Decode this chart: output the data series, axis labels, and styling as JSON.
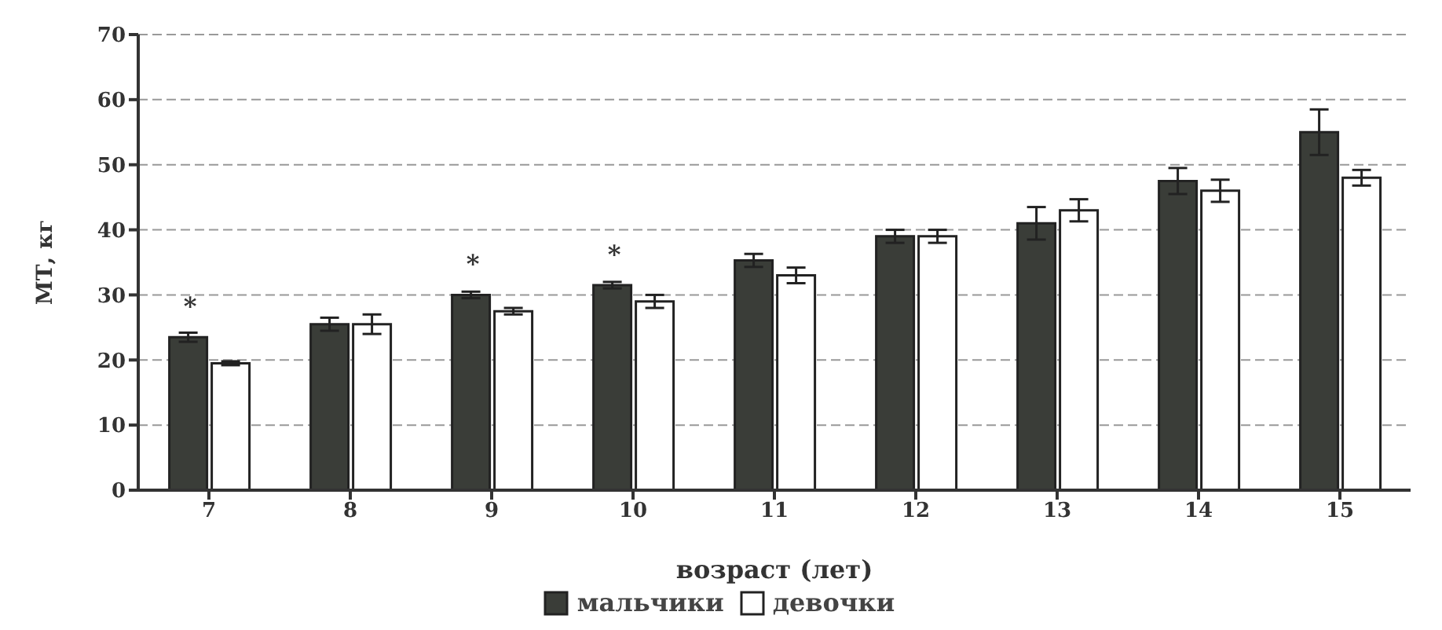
{
  "chart_data": {
    "type": "bar",
    "xlabel": "возраст (лет)",
    "ylabel": "МТ, кг",
    "categories": [
      "7",
      "8",
      "9",
      "10",
      "11",
      "12",
      "13",
      "14",
      "15"
    ],
    "series": [
      {
        "name": "мальчики",
        "color": "#3a3d38",
        "values": [
          23.5,
          25.5,
          30,
          31.5,
          35.3,
          39,
          41,
          47.5,
          55
        ],
        "errors": [
          0.7,
          1,
          0.5,
          0.5,
          1,
          1,
          2.5,
          2,
          3.5
        ]
      },
      {
        "name": "девочки",
        "color": "#ffffff",
        "values": [
          19.5,
          25.5,
          27.5,
          29,
          33,
          39,
          43,
          46,
          48
        ],
        "errors": [
          0.3,
          1.5,
          0.5,
          1,
          1.2,
          1,
          1.7,
          1.7,
          1.2
        ]
      }
    ],
    "ylim": [
      0,
      70
    ],
    "yticks": [
      0,
      10,
      20,
      30,
      40,
      50,
      60,
      70
    ],
    "grid": "y",
    "legend": "bottom",
    "annotations": [
      {
        "text": "*",
        "x": "7",
        "y": 23.5
      },
      {
        "text": "*",
        "x": "9",
        "y": 30
      },
      {
        "text": "*",
        "x": "10",
        "y": 31.5
      }
    ]
  }
}
